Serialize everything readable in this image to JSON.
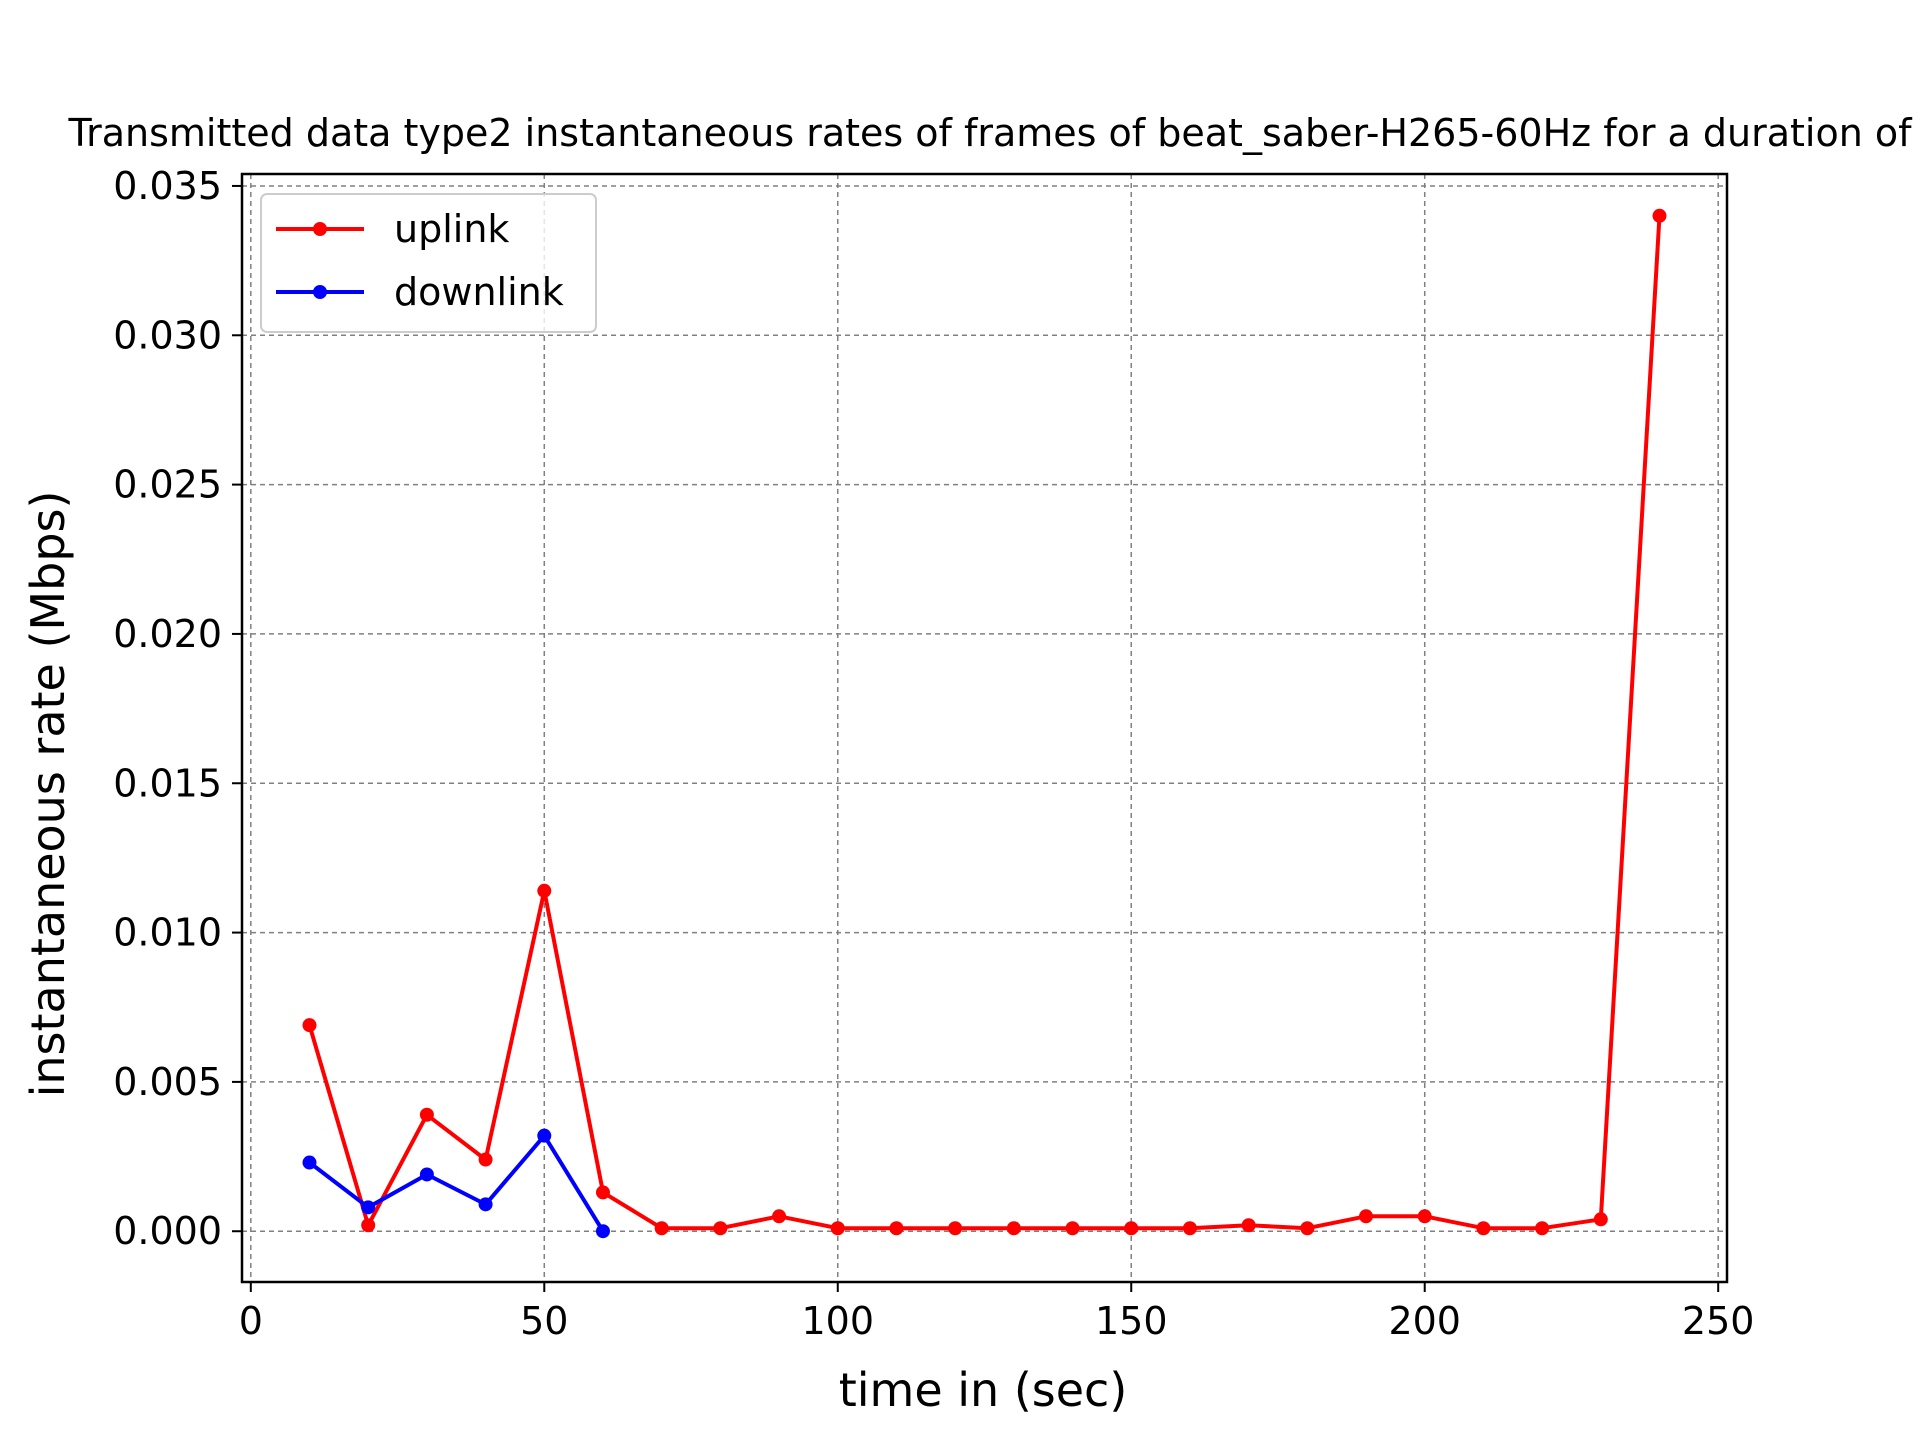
{
  "chart_data": {
    "type": "line",
    "title": "Transmitted data type2 instantaneous rates of frames of beat_saber-H265-60Hz for a duration of",
    "xlabel": "time in (sec)",
    "ylabel": "instantaneous rate (Mbps)",
    "xlim": [
      -1.5,
      251.5
    ],
    "ylim": [
      -0.0017,
      0.0354
    ],
    "xticks": [
      0,
      50,
      100,
      150,
      200,
      250
    ],
    "xtick_labels": [
      "0",
      "50",
      "100",
      "150",
      "200",
      "250"
    ],
    "yticks": [
      0.0,
      0.005,
      0.01,
      0.015,
      0.02,
      0.025,
      0.03,
      0.035
    ],
    "ytick_labels": [
      "0.000",
      "0.005",
      "0.010",
      "0.015",
      "0.020",
      "0.025",
      "0.030",
      "0.035"
    ],
    "grid": true,
    "legend_position": "top-left",
    "series": [
      {
        "name": "uplink",
        "color": "#ff0000",
        "x": [
          10,
          20,
          30,
          40,
          50,
          60,
          70,
          80,
          90,
          100,
          110,
          120,
          130,
          140,
          150,
          160,
          170,
          180,
          190,
          200,
          210,
          220,
          230,
          240
        ],
        "y": [
          0.0069,
          0.0002,
          0.0039,
          0.0024,
          0.0114,
          0.0013,
          0.0001,
          0.0001,
          0.0005,
          0.0001,
          0.0001,
          0.0001,
          0.0001,
          0.0001,
          0.0001,
          0.0001,
          0.0002,
          0.0001,
          0.0005,
          0.0005,
          0.0001,
          0.0001,
          0.0004,
          0.034
        ]
      },
      {
        "name": "downlink",
        "color": "#0000ff",
        "x": [
          10,
          20,
          30,
          40,
          50,
          60
        ],
        "y": [
          0.0023,
          0.0008,
          0.0019,
          0.0009,
          0.0032,
          0.0
        ]
      }
    ]
  }
}
